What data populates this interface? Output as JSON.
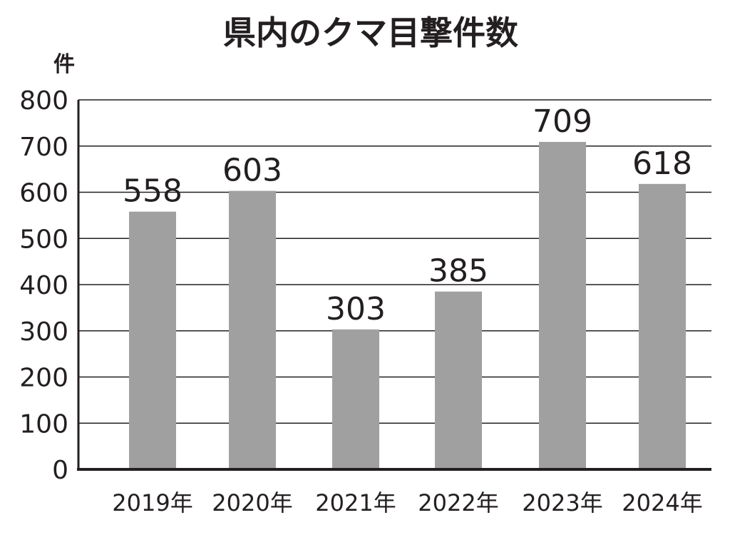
{
  "chart_data": {
    "type": "bar",
    "title": "県内のクマ目撃件数",
    "ylabel": "件",
    "xlabel": "",
    "categories": [
      "2019年",
      "2020年",
      "2021年",
      "2022年",
      "2023年",
      "2024年"
    ],
    "values": [
      558,
      603,
      303,
      385,
      709,
      618
    ],
    "ylim": [
      0,
      800
    ],
    "yticks": [
      0,
      100,
      200,
      300,
      400,
      500,
      600,
      700,
      800
    ],
    "grid": true,
    "legend": "none",
    "colors": {
      "bar": "#a0a0a0",
      "text": "#231f20",
      "grid": "#231f20",
      "background": "#ffffff"
    }
  }
}
